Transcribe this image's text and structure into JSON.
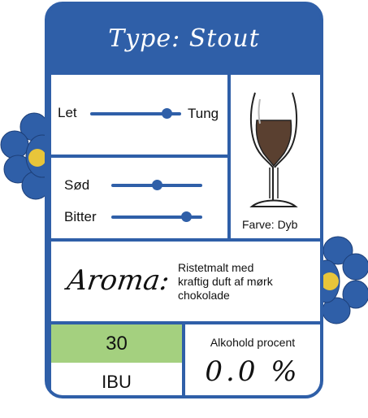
{
  "header": {
    "title": "Type: Stout"
  },
  "body_sliders": {
    "left_label": "Let",
    "right_label": "Tung",
    "level": 0.82
  },
  "taste_sliders": [
    {
      "label": "Sød",
      "level": 0.45
    },
    {
      "label": "Bitter",
      "level": 0.8
    }
  ],
  "glass": {
    "color_label": "Farve: Dyb",
    "beer_color": "#5a4030"
  },
  "aroma": {
    "word": "Aroma:",
    "description": [
      "Ristetmalt med",
      "kraftig duft af mørk",
      "chokolade"
    ]
  },
  "ibu": {
    "value": "30",
    "label": "IBU"
  },
  "alcohol": {
    "label": "Alkohold procent",
    "value": "0.0 %"
  },
  "colors": {
    "border": "#2f5fa8",
    "ibu_green": "#a4d07f",
    "flower_center": "#e8c53a"
  }
}
